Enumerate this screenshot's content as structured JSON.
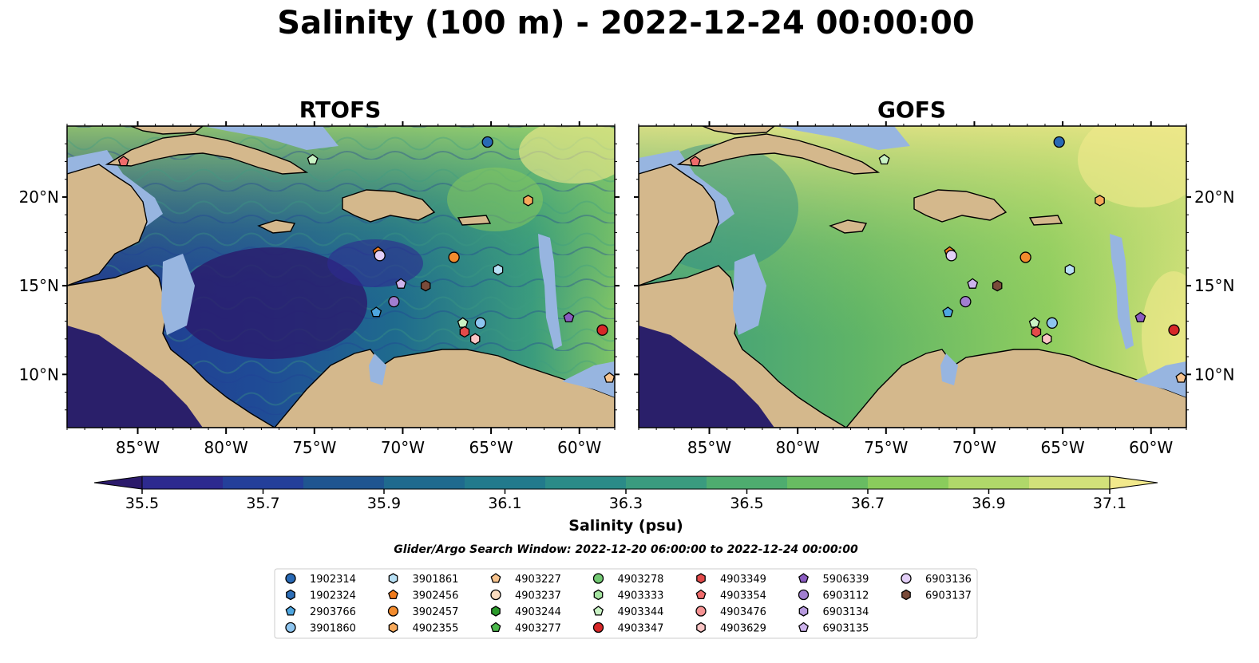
{
  "title": "Salinity (100 m) - 2022-12-24 00:00:00",
  "panels": [
    {
      "title": "RTOFS"
    },
    {
      "title": "GOFS"
    }
  ],
  "axes": {
    "lon_ticks": [
      "85°W",
      "80°W",
      "75°W",
      "70°W",
      "65°W",
      "60°W"
    ],
    "lat_ticks": [
      "20°N",
      "15°N",
      "10°N"
    ]
  },
  "colorbar": {
    "label": "Salinity (psu)",
    "ticks": [
      "35.5",
      "35.7",
      "35.9",
      "36.1",
      "36.3",
      "36.5",
      "36.7",
      "36.9",
      "37.1"
    ],
    "colors": {
      "c0": "#2b1a6b",
      "c1": "#2d2a8f",
      "c2": "#243f9a",
      "c3": "#1f5590",
      "c4": "#1f6a8e",
      "c5": "#227a8c",
      "c6": "#2b8b88",
      "c7": "#3a9b7f",
      "c8": "#4eac6f",
      "c9": "#68bc62",
      "c10": "#8acc5c",
      "c11": "#b0d86a",
      "c12": "#d2e07a",
      "c13": "#f2e98c"
    }
  },
  "colors": {
    "land": "#d4b88c",
    "shelf": "#97b5e0",
    "deep": "#2a1f6a"
  },
  "search_window": "Glider/Argo Search Window: 2022-12-20 06:00:00 to 2022-12-24 00:00:00",
  "legend": [
    {
      "id": "1902314",
      "shape": "circle",
      "color": "#2869b5"
    },
    {
      "id": "1902324",
      "shape": "hexagon",
      "color": "#2e6fb8"
    },
    {
      "id": "2903766",
      "shape": "pentagon",
      "color": "#4ea6e0"
    },
    {
      "id": "3901860",
      "shape": "circle",
      "color": "#8ec5ef"
    },
    {
      "id": "3901861",
      "shape": "hexagon",
      "color": "#b8e0f5"
    },
    {
      "id": "3902456",
      "shape": "pentagon",
      "color": "#f07b1c"
    },
    {
      "id": "3902457",
      "shape": "circle",
      "color": "#f28b2d"
    },
    {
      "id": "4902355",
      "shape": "hexagon",
      "color": "#f7a95b"
    },
    {
      "id": "4903227",
      "shape": "pentagon",
      "color": "#f8c48e"
    },
    {
      "id": "4903237",
      "shape": "circle",
      "color": "#fbdcbf"
    },
    {
      "id": "4903244",
      "shape": "hexagon",
      "color": "#2b9b2b"
    },
    {
      "id": "4903277",
      "shape": "pentagon",
      "color": "#4cb84c"
    },
    {
      "id": "4903278",
      "shape": "circle",
      "color": "#72c872"
    },
    {
      "id": "4903333",
      "shape": "hexagon",
      "color": "#a4e3a0"
    },
    {
      "id": "4903344",
      "shape": "pentagon",
      "color": "#c9f2c4"
    },
    {
      "id": "4903347",
      "shape": "circle",
      "color": "#d62728"
    },
    {
      "id": "4903349",
      "shape": "hexagon",
      "color": "#e34a4a"
    },
    {
      "id": "4903354",
      "shape": "pentagon",
      "color": "#ef6b6b"
    },
    {
      "id": "4903476",
      "shape": "circle",
      "color": "#f59393"
    },
    {
      "id": "4903629",
      "shape": "hexagon",
      "color": "#f9c4c4"
    },
    {
      "id": "5906339",
      "shape": "pentagon",
      "color": "#8a5bc0"
    },
    {
      "id": "6903112",
      "shape": "circle",
      "color": "#a17ed0"
    },
    {
      "id": "6903134",
      "shape": "hexagon",
      "color": "#b79ade"
    },
    {
      "id": "6903135",
      "shape": "pentagon",
      "color": "#cdb3ec"
    },
    {
      "id": "6903136",
      "shape": "circle",
      "color": "#e3cff8"
    },
    {
      "id": "6903137",
      "shape": "hexagon",
      "color": "#7a4b3a"
    }
  ],
  "markers": [
    {
      "id": "1902314",
      "lon": -65.2,
      "lat": 23.1
    },
    {
      "id": "4903354",
      "lon": -85.8,
      "lat": 22.0
    },
    {
      "id": "4903344",
      "lon": -75.1,
      "lat": 22.1
    },
    {
      "id": "4902355",
      "lon": -62.9,
      "lat": 19.8
    },
    {
      "id": "3902456",
      "lon": -71.4,
      "lat": 16.9
    },
    {
      "id": "6903136",
      "lon": -71.3,
      "lat": 16.7
    },
    {
      "id": "3902457",
      "lon": -67.1,
      "lat": 16.6
    },
    {
      "id": "3901861",
      "lon": -64.6,
      "lat": 15.9
    },
    {
      "id": "6903135",
      "lon": -70.1,
      "lat": 15.1
    },
    {
      "id": "6903137",
      "lon": -68.7,
      "lat": 15.0
    },
    {
      "id": "6903112",
      "lon": -70.5,
      "lat": 14.1
    },
    {
      "id": "2903766",
      "lon": -71.5,
      "lat": 13.5
    },
    {
      "id": "5906339",
      "lon": -60.6,
      "lat": 13.2
    },
    {
      "id": "4903347",
      "lon": -58.7,
      "lat": 12.5
    },
    {
      "id": "4903344",
      "lon": -66.6,
      "lat": 12.9
    },
    {
      "id": "3901860",
      "lon": -65.6,
      "lat": 12.9
    },
    {
      "id": "4903349",
      "lon": -66.5,
      "lat": 12.4
    },
    {
      "id": "4903629",
      "lon": -65.9,
      "lat": 12.0
    },
    {
      "id": "4903227",
      "lon": -58.3,
      "lat": 9.8
    }
  ]
}
